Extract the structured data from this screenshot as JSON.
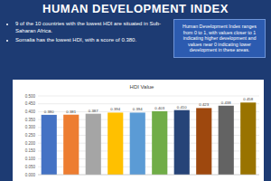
{
  "page": {
    "title": "HUMAN DEVELOPMENT INDEX",
    "bullets": [
      "9 of the 10 countries with the lowest HDI are situated in Sub-Saharan Africa.",
      "Somalia has the lowest HDI, with a score of 0.380."
    ],
    "note": "Human Development Index ranges from 0 to 1, with values closer to 1 indicating higher development and values near 0 indicating lower development in these areas."
  },
  "chart_data": {
    "type": "bar",
    "title": "HDI Value",
    "categories": [
      null,
      null,
      null,
      null,
      null,
      null,
      null,
      null,
      null,
      null
    ],
    "values": [
      0.38,
      0.381,
      0.387,
      0.394,
      0.394,
      0.403,
      0.41,
      0.423,
      0.438,
      0.458
    ],
    "value_labels": [
      "0.380",
      "0.381",
      "0.387",
      "0.394",
      "0.394",
      "0.403",
      "0.410",
      "0.423",
      "0.438",
      "0.458"
    ],
    "colors": [
      "#4472c4",
      "#ed7d31",
      "#a5a5a5",
      "#ffc000",
      "#5b9bd5",
      "#70ad47",
      "#264478",
      "#9e480e",
      "#636363",
      "#997300"
    ],
    "ylim": [
      0,
      0.5
    ],
    "yticks": [
      {
        "value": 0,
        "label": "0.000"
      },
      {
        "value": 0.05,
        "label": "0.050"
      },
      {
        "value": 0.1,
        "label": "0.100"
      },
      {
        "value": 0.15,
        "label": "0.150"
      },
      {
        "value": 0.2,
        "label": "0.200"
      },
      {
        "value": 0.25,
        "label": "0.250"
      },
      {
        "value": 0.3,
        "label": "0.300"
      },
      {
        "value": 0.35,
        "label": "0.350"
      },
      {
        "value": 0.4,
        "label": "0.400"
      },
      {
        "value": 0.45,
        "label": "0.450"
      },
      {
        "value": 0.5,
        "label": "0.500"
      }
    ],
    "grid": true,
    "data_labels": true,
    "tick_labels": "y"
  }
}
